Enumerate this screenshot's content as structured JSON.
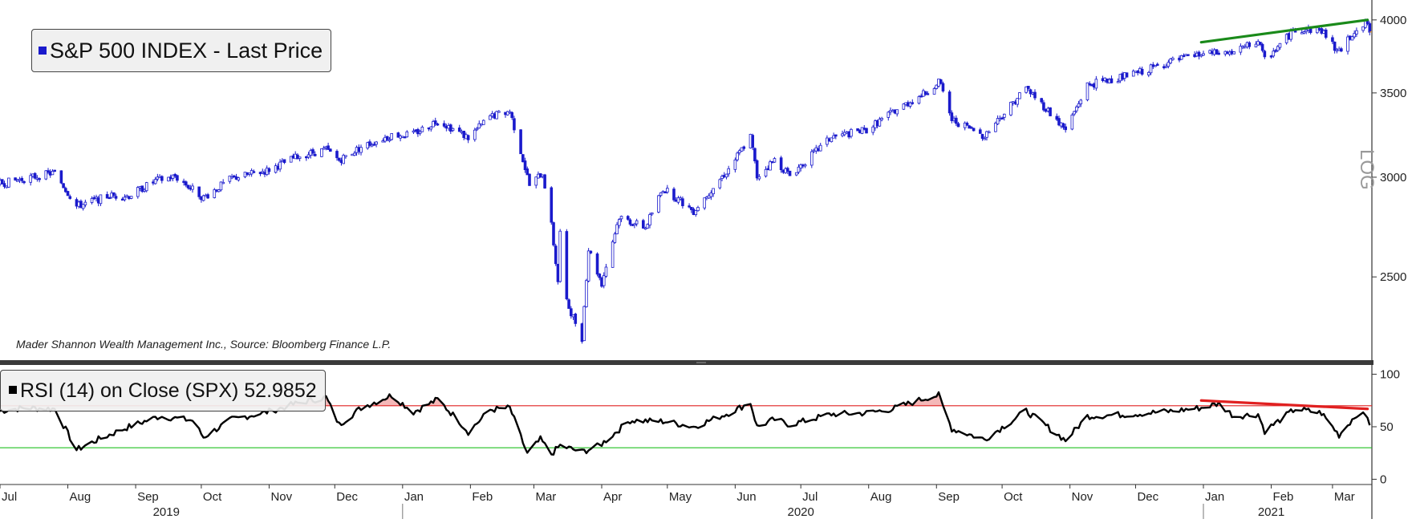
{
  "legend": {
    "price_label": "S&P 500 INDEX - Last Price",
    "rsi_label": "RSI (14)  on Close (SPX) 52.9852",
    "price_swatch_color": "#1a1acc",
    "rsi_swatch_color": "#000000"
  },
  "source_note": "Mader Shannon Wealth Management Inc., Source: Bloomberg Finance L.P.",
  "log_label": "LOG",
  "chart_data": [
    {
      "type": "candlestick",
      "name": "S&P 500 INDEX - Last Price",
      "x_axis": {
        "type": "date",
        "range": [
          "2019-07-01",
          "2021-03-19"
        ],
        "tick_labels": [
          "Jul",
          "Aug",
          "Sep",
          "Oct",
          "Nov",
          "Dec",
          "Jan",
          "Feb",
          "Mar",
          "Apr",
          "May",
          "Jun",
          "Jul",
          "Aug",
          "Sep",
          "Oct",
          "Nov",
          "Dec",
          "Jan",
          "Feb",
          "Mar"
        ],
        "tick_dates": [
          "2019-07-01",
          "2019-08-01",
          "2019-09-01",
          "2019-10-01",
          "2019-11-01",
          "2019-12-01",
          "2020-01-01",
          "2020-02-01",
          "2020-03-01",
          "2020-04-01",
          "2020-05-01",
          "2020-06-01",
          "2020-07-01",
          "2020-08-01",
          "2020-09-01",
          "2020-10-01",
          "2020-11-01",
          "2020-12-01",
          "2021-01-01",
          "2021-02-01",
          "2021-03-01"
        ],
        "year_labels": [
          "2019",
          "2020",
          "2021"
        ],
        "year_centers": [
          "2019-09-15",
          "2020-07-01",
          "2021-02-01"
        ],
        "year_dividers": [
          "2020-01-01",
          "2021-01-01"
        ]
      },
      "y_axis": {
        "scale": "log",
        "range": [
          2150,
          4100
        ],
        "ticks": [
          2500,
          3000,
          3500,
          4000
        ],
        "position": "right"
      },
      "color": "#1a1acc",
      "last_price_line": {
        "value": 3913,
        "color": "#f0a030"
      },
      "anchors": [
        [
          "2019-07-01",
          2965
        ],
        [
          "2019-07-26",
          3025
        ],
        [
          "2019-08-05",
          2845
        ],
        [
          "2019-08-20",
          2900
        ],
        [
          "2019-08-29",
          2900
        ],
        [
          "2019-09-10",
          2980
        ],
        [
          "2019-09-19",
          3005
        ],
        [
          "2019-10-02",
          2890
        ],
        [
          "2019-10-15",
          2995
        ],
        [
          "2019-10-31",
          3037
        ],
        [
          "2019-11-15",
          3120
        ],
        [
          "2019-11-27",
          3155
        ],
        [
          "2019-12-03",
          3095
        ],
        [
          "2019-12-13",
          3170
        ],
        [
          "2019-12-27",
          3240
        ],
        [
          "2020-01-06",
          3245
        ],
        [
          "2020-01-17",
          3330
        ],
        [
          "2020-01-31",
          3225
        ],
        [
          "2020-02-10",
          3352
        ],
        [
          "2020-02-19",
          3386
        ],
        [
          "2020-02-28",
          2955
        ],
        [
          "2020-03-05",
          3025
        ],
        [
          "2020-03-09",
          2746
        ],
        [
          "2020-03-12",
          2480
        ],
        [
          "2020-03-13",
          2711
        ],
        [
          "2020-03-16",
          2386
        ],
        [
          "2020-03-23",
          2237
        ],
        [
          "2020-03-26",
          2630
        ],
        [
          "2020-04-01",
          2470
        ],
        [
          "2020-04-09",
          2790
        ],
        [
          "2020-04-21",
          2736
        ],
        [
          "2020-04-29",
          2940
        ],
        [
          "2020-05-13",
          2820
        ],
        [
          "2020-05-29",
          3044
        ],
        [
          "2020-06-08",
          3232
        ],
        [
          "2020-06-11",
          3002
        ],
        [
          "2020-06-19",
          3097
        ],
        [
          "2020-06-26",
          3009
        ],
        [
          "2020-07-15",
          3227
        ],
        [
          "2020-07-31",
          3271
        ],
        [
          "2020-08-12",
          3380
        ],
        [
          "2020-08-28",
          3508
        ],
        [
          "2020-09-02",
          3580
        ],
        [
          "2020-09-08",
          3331
        ],
        [
          "2020-09-23",
          3237
        ],
        [
          "2020-10-12",
          3534
        ],
        [
          "2020-10-30",
          3270
        ],
        [
          "2020-11-09",
          3551
        ],
        [
          "2020-11-30",
          3622
        ],
        [
          "2020-12-18",
          3709
        ],
        [
          "2020-12-31",
          3756
        ],
        [
          "2021-01-15",
          3768
        ],
        [
          "2021-01-26",
          3850
        ],
        [
          "2021-01-29",
          3714
        ],
        [
          "2021-02-12",
          3934
        ],
        [
          "2021-02-24",
          3925
        ],
        [
          "2021-03-04",
          3768
        ],
        [
          "2021-03-12",
          3943
        ],
        [
          "2021-03-17",
          3974
        ],
        [
          "2021-03-18",
          3915
        ]
      ],
      "annotations": [
        {
          "type": "trendline",
          "color": "#1a8a1a",
          "from": [
            "2020-12-31",
            3840
          ],
          "to": [
            "2021-03-17",
            4000
          ]
        }
      ]
    },
    {
      "type": "line",
      "name": "RSI (14)  on Close (SPX)",
      "last_value": 52.9852,
      "y_axis": {
        "range": [
          -5,
          105
        ],
        "ticks": [
          0,
          50,
          100
        ],
        "position": "right"
      },
      "color": "#000000",
      "levels": [
        {
          "value": 70,
          "color": "#e02020"
        },
        {
          "value": 30,
          "color": "#20c020"
        }
      ],
      "overbought_fill_color": "#f4b8b8",
      "anchors": [
        [
          "2019-07-01",
          65
        ],
        [
          "2019-07-12",
          68
        ],
        [
          "2019-07-26",
          67
        ],
        [
          "2019-08-05",
          28
        ],
        [
          "2019-08-15",
          38
        ],
        [
          "2019-08-29",
          50
        ],
        [
          "2019-09-12",
          60
        ],
        [
          "2019-09-27",
          56
        ],
        [
          "2019-10-02",
          40
        ],
        [
          "2019-10-15",
          57
        ],
        [
          "2019-10-31",
          64
        ],
        [
          "2019-11-15",
          73
        ],
        [
          "2019-11-27",
          78
        ],
        [
          "2019-12-03",
          52
        ],
        [
          "2019-12-13",
          68
        ],
        [
          "2019-12-27",
          80
        ],
        [
          "2020-01-06",
          64
        ],
        [
          "2020-01-17",
          76
        ],
        [
          "2020-01-27",
          55
        ],
        [
          "2020-01-31",
          45
        ],
        [
          "2020-02-10",
          66
        ],
        [
          "2020-02-19",
          68
        ],
        [
          "2020-02-27",
          24
        ],
        [
          "2020-03-04",
          38
        ],
        [
          "2020-03-09",
          24
        ],
        [
          "2020-03-13",
          32
        ],
        [
          "2020-03-23",
          26
        ],
        [
          "2020-03-31",
          32
        ],
        [
          "2020-04-14",
          56
        ],
        [
          "2020-04-30",
          55
        ],
        [
          "2020-05-13",
          50
        ],
        [
          "2020-05-29",
          63
        ],
        [
          "2020-06-08",
          73
        ],
        [
          "2020-06-11",
          50
        ],
        [
          "2020-06-19",
          57
        ],
        [
          "2020-06-26",
          52
        ],
        [
          "2020-07-15",
          62
        ],
        [
          "2020-07-31",
          63
        ],
        [
          "2020-08-12",
          67
        ],
        [
          "2020-08-28",
          78
        ],
        [
          "2020-09-02",
          80
        ],
        [
          "2020-09-08",
          48
        ],
        [
          "2020-09-23",
          38
        ],
        [
          "2020-10-12",
          65
        ],
        [
          "2020-10-30",
          37
        ],
        [
          "2020-11-09",
          60
        ],
        [
          "2020-11-30",
          62
        ],
        [
          "2020-12-18",
          65
        ],
        [
          "2020-12-31",
          68
        ],
        [
          "2021-01-08",
          72
        ],
        [
          "2021-01-15",
          60
        ],
        [
          "2021-01-26",
          62
        ],
        [
          "2021-01-29",
          46
        ],
        [
          "2021-02-12",
          67
        ],
        [
          "2021-02-24",
          63
        ],
        [
          "2021-03-04",
          42
        ],
        [
          "2021-03-12",
          62
        ],
        [
          "2021-03-17",
          60
        ],
        [
          "2021-03-18",
          53
        ]
      ],
      "annotations": [
        {
          "type": "trendline",
          "color": "#e02020",
          "from": [
            "2020-12-31",
            75
          ],
          "to": [
            "2021-03-17",
            67
          ]
        }
      ]
    }
  ]
}
